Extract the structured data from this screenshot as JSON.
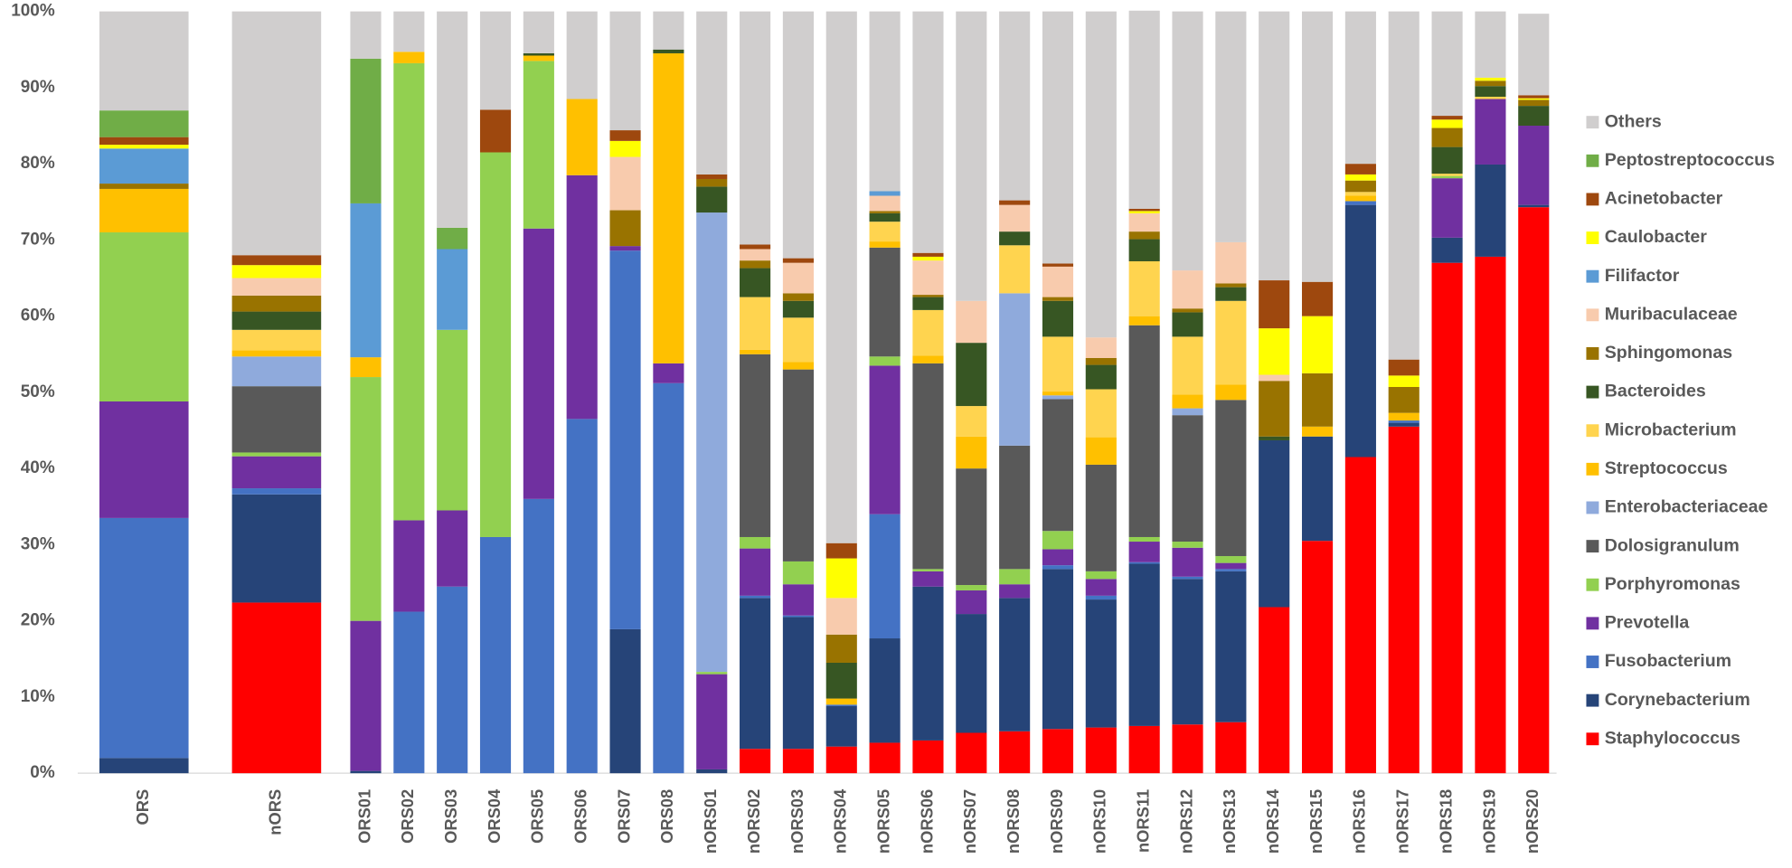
{
  "chart_data": {
    "type": "stacked_bar",
    "categories": [
      "ORS",
      "nORS",
      "ORS01",
      "ORS02",
      "ORS03",
      "ORS04",
      "ORS05",
      "ORS06",
      "ORS07",
      "ORS08",
      "nORS01",
      "nORS02",
      "nORS03",
      "nORS04",
      "nORS05",
      "nORS06",
      "nORS07",
      "nORS08",
      "nORS09",
      "nORS10",
      "nORS11",
      "nORS12",
      "nORS13",
      "nORS14",
      "nORS15",
      "nORS16",
      "nORS17",
      "nORS18",
      "nORS19",
      "nORS20"
    ],
    "ylim": [
      0,
      100
    ],
    "yticks": [
      {
        "value": 0,
        "label": "0%"
      },
      {
        "value": 10,
        "label": "10%"
      },
      {
        "value": 20,
        "label": "20%"
      },
      {
        "value": 30,
        "label": "30%"
      },
      {
        "value": 40,
        "label": "40%"
      },
      {
        "value": 50,
        "label": "50%"
      },
      {
        "value": 60,
        "label": "60%"
      },
      {
        "value": 70,
        "label": "70%"
      },
      {
        "value": 80,
        "label": "80%"
      },
      {
        "value": 90,
        "label": "90%"
      },
      {
        "value": 100,
        "label": "100%"
      }
    ],
    "grid": false,
    "legend": "right",
    "series": [
      {
        "name": "Staphylococcus",
        "color": "#ff0000",
        "values": [
          0,
          22.4,
          0,
          0,
          0,
          0,
          0,
          0,
          0,
          0,
          0,
          3.2,
          3.2,
          3.5,
          4,
          4.3,
          5.3,
          5.5,
          5.8,
          6,
          6.2,
          6.4,
          6.7,
          21.8,
          30.5,
          41.5,
          45.5,
          67,
          67.8,
          74.3
        ]
      },
      {
        "name": "Corynebacterium",
        "color": "#264478",
        "values": [
          2,
          14.2,
          0.3,
          0,
          0,
          0,
          0,
          0,
          18.9,
          0,
          0.5,
          19.8,
          17.3,
          5.3,
          13.7,
          20.2,
          15.6,
          17.5,
          21,
          16.8,
          21.3,
          19.1,
          19.8,
          21.9,
          13.7,
          33.1,
          0.5,
          3.3,
          12.1,
          0.3
        ]
      },
      {
        "name": "Fusobacterium",
        "color": "#4472c4",
        "values": [
          31.5,
          0.8,
          0,
          21.2,
          24.5,
          31,
          36,
          46.5,
          49.7,
          51.2,
          0,
          0.3,
          0.2,
          0.2,
          16.3,
          0,
          0,
          0,
          0.5,
          0.5,
          0.2,
          0.3,
          0.3,
          0,
          0,
          0.5,
          0.3,
          0,
          0,
          0
        ]
      },
      {
        "name": "Prevotella",
        "color": "#7030a0",
        "values": [
          15.3,
          4.2,
          19.7,
          12,
          10,
          0,
          35.5,
          32,
          0.6,
          2.6,
          12.5,
          6.2,
          4.1,
          0,
          19.5,
          2,
          3.1,
          1.8,
          2.1,
          2.2,
          2.7,
          3.8,
          0.8,
          0,
          0,
          0,
          0,
          7.8,
          8.6,
          10.4
        ]
      },
      {
        "name": "Porphyromonas",
        "color": "#92d050",
        "values": [
          22.2,
          0.5,
          32,
          60,
          23.7,
          50.5,
          22,
          0,
          0,
          0,
          0.3,
          1.5,
          3,
          0,
          1.2,
          0.3,
          0.7,
          2,
          2.4,
          1,
          0.6,
          0.8,
          0.9,
          0,
          0,
          0,
          0,
          0.3,
          0,
          0
        ]
      },
      {
        "name": "Dolosigranulum",
        "color": "#595959",
        "values": [
          0,
          8.7,
          0,
          0,
          0,
          0,
          0,
          0,
          0,
          0,
          0,
          24,
          25.2,
          0,
          14.3,
          27,
          15.3,
          16.2,
          17.3,
          14,
          27.8,
          16.6,
          20.5,
          0,
          0,
          0,
          0,
          0,
          0,
          0
        ]
      },
      {
        "name": "Enterobacteriaceae",
        "color": "#8faadc",
        "values": [
          0,
          3.9,
          0,
          0,
          0,
          0,
          0,
          0,
          0,
          0,
          60.3,
          0,
          0,
          0,
          0,
          0,
          0,
          20,
          0.5,
          0,
          0,
          0.9,
          0,
          0,
          0,
          0,
          0,
          0,
          0,
          0
        ]
      },
      {
        "name": "Streptococcus",
        "color": "#ffc000",
        "values": [
          5.7,
          0.8,
          2.6,
          1.5,
          0,
          0,
          0.7,
          10,
          0,
          40.7,
          0,
          0.6,
          1,
          0.8,
          0.8,
          1,
          4.2,
          0,
          0.5,
          3.6,
          1.2,
          1.8,
          2,
          0,
          1.3,
          0.7,
          1,
          0,
          0,
          0
        ]
      },
      {
        "name": "Microbacterium",
        "color": "#ffd44f",
        "values": [
          0,
          2.7,
          0,
          0,
          0,
          0,
          0,
          0,
          0,
          0,
          0,
          6.9,
          5.8,
          0,
          2.6,
          6,
          4,
          6.3,
          7.2,
          6.3,
          7.2,
          7.6,
          11,
          0,
          0,
          0.5,
          0,
          0.3,
          0.3,
          0
        ]
      },
      {
        "name": "Bacteroides",
        "color": "#375623",
        "values": [
          0,
          2.4,
          0,
          0,
          0,
          0,
          0.3,
          0,
          0,
          0.5,
          3.4,
          3.8,
          2.2,
          4.7,
          1.1,
          1.7,
          8.3,
          1.8,
          4.7,
          3.2,
          2.9,
          3.2,
          1.8,
          0.5,
          0,
          0,
          0,
          3.5,
          1.4,
          2.6
        ]
      },
      {
        "name": "Sphingomonas",
        "color": "#997300",
        "values": [
          0.7,
          2.1,
          0,
          0,
          0,
          0,
          0,
          0,
          4.7,
          0,
          1,
          1,
          1,
          3.7,
          0.3,
          0.3,
          0,
          0,
          0.5,
          0.9,
          1,
          0.5,
          0.5,
          7.3,
          7,
          1.5,
          3.4,
          2.5,
          0.7,
          0.8
        ]
      },
      {
        "name": "Muribaculaceae",
        "color": "#f8cbad",
        "values": [
          0,
          2.3,
          0,
          0,
          0,
          0,
          0,
          0,
          7,
          0,
          0,
          1.5,
          4,
          4.8,
          2,
          4.5,
          5.5,
          3.5,
          4,
          2.7,
          2.4,
          5,
          5.4,
          0.8,
          0,
          0,
          0,
          0,
          0,
          0
        ]
      },
      {
        "name": "Filifactor",
        "color": "#5b9bd5",
        "values": [
          4.6,
          0,
          20.2,
          0,
          10.6,
          0,
          0,
          0,
          0,
          0,
          0,
          0,
          0,
          0,
          0.6,
          0,
          0,
          0,
          0,
          0,
          0,
          0,
          0,
          0,
          0,
          0,
          0,
          0,
          0,
          0
        ]
      },
      {
        "name": "Caulobacter",
        "color": "#ffff00",
        "values": [
          0.5,
          1.7,
          0,
          0,
          0,
          0,
          0,
          0,
          2.1,
          0,
          0,
          0,
          0,
          5.2,
          0,
          0.5,
          0,
          0,
          0,
          0,
          0.3,
          0,
          0,
          6.1,
          7.5,
          0.8,
          1.5,
          1.1,
          0.4,
          0.2
        ]
      },
      {
        "name": "Acinetobacter",
        "color": "#9e480e",
        "values": [
          1,
          1.3,
          0,
          0,
          0,
          5.6,
          0,
          0,
          1.4,
          0,
          0.6,
          0.6,
          0.6,
          2,
          0,
          0.5,
          0,
          0.6,
          0.4,
          0,
          0.3,
          0,
          0,
          6.3,
          4.5,
          1.4,
          2.1,
          0.5,
          0,
          0.4
        ]
      },
      {
        "name": "Peptostreptococcus",
        "color": "#70ad47",
        "values": [
          3.5,
          0,
          19,
          0,
          2.8,
          0,
          0,
          0,
          0,
          0,
          0,
          0,
          0,
          0,
          0,
          0,
          0,
          0,
          0,
          0,
          0,
          0,
          0,
          0,
          0,
          0,
          0,
          0,
          0,
          0
        ]
      },
      {
        "name": "Others",
        "color": "#d0cece",
        "values": [
          13,
          32,
          6.2,
          5.3,
          28.4,
          12.9,
          5.5,
          11.5,
          15.6,
          5,
          21.4,
          30.6,
          32.4,
          69.8,
          23.6,
          31.7,
          38,
          24.8,
          33.1,
          42.8,
          26,
          34,
          30.3,
          35.3,
          35.5,
          20,
          45.7,
          13.7,
          8.7,
          10.7
        ]
      }
    ]
  }
}
